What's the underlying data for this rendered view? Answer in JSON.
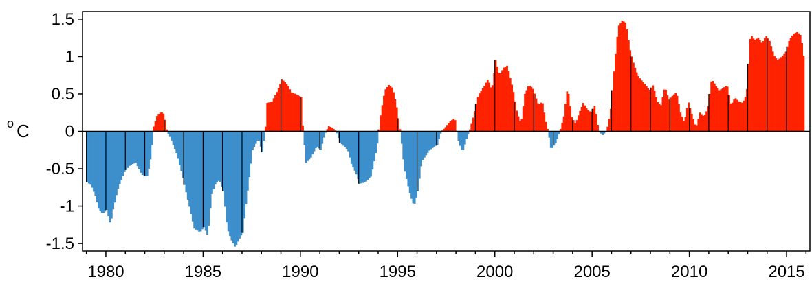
{
  "chart_data": {
    "type": "bar",
    "title": "",
    "xlabel": "",
    "ylabel": "C",
    "ylabel_prefix": "o",
    "xlim": [
      1978.8,
      2016.2
    ],
    "ylim": [
      -1.6,
      1.6
    ],
    "x_ticks": [
      1980,
      1985,
      1990,
      1995,
      2000,
      2005,
      2010,
      2015
    ],
    "x_tick_labels": [
      "1980",
      "1985",
      "1990",
      "1995",
      "2000",
      "2005",
      "2010",
      "2015"
    ],
    "y_ticks": [
      -1.5,
      -1,
      -0.5,
      0,
      0.5,
      1,
      1.5
    ],
    "y_tick_labels": [
      "-1.5",
      "-1",
      "-0.5",
      "0",
      "0.5",
      "1",
      "1.5"
    ],
    "grid": false,
    "legend": "none",
    "colors": {
      "positive": "#ff2200",
      "negative": "#3d8fcc",
      "divider": "#000000"
    },
    "series": [
      {
        "sampling": "monthly (linear interpolation between points)",
        "points": [
          [
            1979.0,
            -0.68
          ],
          [
            1979.2,
            -0.72
          ],
          [
            1979.4,
            -0.85
          ],
          [
            1979.6,
            -1.05
          ],
          [
            1979.8,
            -1.1
          ],
          [
            1980.0,
            -1.05
          ],
          [
            1980.2,
            -1.25
          ],
          [
            1980.3,
            -1.08
          ],
          [
            1980.6,
            -0.75
          ],
          [
            1980.9,
            -0.55
          ],
          [
            1981.2,
            -0.45
          ],
          [
            1981.5,
            -0.42
          ],
          [
            1981.8,
            -0.58
          ],
          [
            1982.1,
            -0.6
          ],
          [
            1982.3,
            -0.3
          ],
          [
            1982.4,
            0.05
          ],
          [
            1982.6,
            0.22
          ],
          [
            1982.8,
            0.26
          ],
          [
            1982.95,
            0.23
          ],
          [
            1983.1,
            0.0
          ],
          [
            1983.3,
            -0.1
          ],
          [
            1983.6,
            -0.3
          ],
          [
            1983.9,
            -0.6
          ],
          [
            1984.2,
            -0.95
          ],
          [
            1984.5,
            -1.3
          ],
          [
            1984.8,
            -1.35
          ],
          [
            1985.0,
            -1.28
          ],
          [
            1985.2,
            -1.4
          ],
          [
            1985.4,
            -0.85
          ],
          [
            1985.6,
            -0.7
          ],
          [
            1985.8,
            -0.65
          ],
          [
            1986.0,
            -0.8
          ],
          [
            1986.2,
            -1.3
          ],
          [
            1986.4,
            -1.45
          ],
          [
            1986.6,
            -1.55
          ],
          [
            1986.8,
            -1.45
          ],
          [
            1987.0,
            -1.35
          ],
          [
            1987.2,
            -0.9
          ],
          [
            1987.5,
            -0.25
          ],
          [
            1987.8,
            -0.1
          ],
          [
            1988.0,
            -0.28
          ],
          [
            1988.15,
            0.0
          ],
          [
            1988.25,
            0.38
          ],
          [
            1988.5,
            0.4
          ],
          [
            1988.8,
            0.55
          ],
          [
            1989.0,
            0.7
          ],
          [
            1989.3,
            0.62
          ],
          [
            1989.5,
            0.52
          ],
          [
            1989.7,
            0.5
          ],
          [
            1990.0,
            0.46
          ],
          [
            1990.1,
            0.0
          ],
          [
            1990.25,
            -0.42
          ],
          [
            1990.5,
            -0.35
          ],
          [
            1990.8,
            -0.2
          ],
          [
            1991.0,
            -0.25
          ],
          [
            1991.2,
            -0.05
          ],
          [
            1991.4,
            0.07
          ],
          [
            1991.6,
            0.05
          ],
          [
            1991.8,
            0.0
          ],
          [
            1992.0,
            -0.15
          ],
          [
            1992.2,
            -0.2
          ],
          [
            1992.4,
            -0.25
          ],
          [
            1992.6,
            -0.45
          ],
          [
            1992.8,
            -0.55
          ],
          [
            1993.0,
            -0.7
          ],
          [
            1993.3,
            -0.68
          ],
          [
            1993.6,
            -0.6
          ],
          [
            1993.9,
            -0.2
          ],
          [
            1994.1,
            0.25
          ],
          [
            1994.3,
            0.55
          ],
          [
            1994.5,
            0.62
          ],
          [
            1994.7,
            0.58
          ],
          [
            1994.9,
            0.35
          ],
          [
            1995.1,
            0.0
          ],
          [
            1995.3,
            -0.5
          ],
          [
            1995.6,
            -0.85
          ],
          [
            1995.8,
            -1.0
          ],
          [
            1996.0,
            -0.8
          ],
          [
            1996.2,
            -0.4
          ],
          [
            1996.6,
            -0.25
          ],
          [
            1997.0,
            -0.18
          ],
          [
            1997.2,
            0.0
          ],
          [
            1997.4,
            0.05
          ],
          [
            1997.6,
            0.12
          ],
          [
            1997.9,
            0.18
          ],
          [
            1998.0,
            0.0
          ],
          [
            1998.1,
            -0.15
          ],
          [
            1998.3,
            -0.28
          ],
          [
            1998.5,
            -0.1
          ],
          [
            1998.7,
            0.05
          ],
          [
            1998.9,
            0.25
          ],
          [
            1999.1,
            0.48
          ],
          [
            1999.4,
            0.6
          ],
          [
            1999.6,
            0.7
          ],
          [
            1999.8,
            0.55
          ],
          [
            2000.0,
            0.95
          ],
          [
            2000.2,
            0.75
          ],
          [
            2000.4,
            0.85
          ],
          [
            2000.6,
            0.88
          ],
          [
            2000.9,
            0.55
          ],
          [
            2001.1,
            0.25
          ],
          [
            2001.3,
            0.1
          ],
          [
            2001.5,
            0.5
          ],
          [
            2001.7,
            0.62
          ],
          [
            2001.9,
            0.58
          ],
          [
            2002.2,
            0.35
          ],
          [
            2002.4,
            0.4
          ],
          [
            2002.6,
            0.1
          ],
          [
            2002.7,
            0.0
          ],
          [
            2002.85,
            -0.25
          ],
          [
            2003.1,
            -0.15
          ],
          [
            2003.3,
            0.0
          ],
          [
            2003.5,
            0.2
          ],
          [
            2003.7,
            0.6
          ],
          [
            2003.9,
            0.2
          ],
          [
            2004.1,
            0.1
          ],
          [
            2004.3,
            0.25
          ],
          [
            2004.5,
            0.38
          ],
          [
            2004.7,
            0.3
          ],
          [
            2004.9,
            0.25
          ],
          [
            2005.1,
            0.35
          ],
          [
            2005.3,
            0.0
          ],
          [
            2005.5,
            -0.05
          ],
          [
            2005.7,
            0.0
          ],
          [
            2005.9,
            0.25
          ],
          [
            2006.1,
            0.85
          ],
          [
            2006.3,
            1.4
          ],
          [
            2006.5,
            1.48
          ],
          [
            2006.7,
            1.45
          ],
          [
            2006.9,
            1.1
          ],
          [
            2007.1,
            0.9
          ],
          [
            2007.3,
            0.75
          ],
          [
            2007.5,
            0.68
          ],
          [
            2007.7,
            0.62
          ],
          [
            2007.9,
            0.55
          ],
          [
            2008.1,
            0.62
          ],
          [
            2008.3,
            0.4
          ],
          [
            2008.5,
            0.35
          ],
          [
            2008.7,
            0.6
          ],
          [
            2008.9,
            0.42
          ],
          [
            2009.1,
            0.48
          ],
          [
            2009.3,
            0.52
          ],
          [
            2009.5,
            0.25
          ],
          [
            2009.7,
            0.12
          ],
          [
            2009.9,
            0.4
          ],
          [
            2010.1,
            0.22
          ],
          [
            2010.3,
            0.05
          ],
          [
            2010.5,
            0.25
          ],
          [
            2010.7,
            0.2
          ],
          [
            2010.9,
            0.3
          ],
          [
            2011.1,
            0.7
          ],
          [
            2011.3,
            0.62
          ],
          [
            2011.5,
            0.55
          ],
          [
            2011.7,
            0.58
          ],
          [
            2011.9,
            0.62
          ],
          [
            2012.1,
            0.35
          ],
          [
            2012.3,
            0.45
          ],
          [
            2012.5,
            0.4
          ],
          [
            2012.7,
            0.38
          ],
          [
            2012.9,
            0.5
          ],
          [
            2013.1,
            1.3
          ],
          [
            2013.3,
            1.22
          ],
          [
            2013.5,
            1.25
          ],
          [
            2013.7,
            1.18
          ],
          [
            2013.9,
            1.28
          ],
          [
            2014.1,
            1.2
          ],
          [
            2014.3,
            1.02
          ],
          [
            2014.5,
            0.95
          ],
          [
            2014.7,
            1.0
          ],
          [
            2014.9,
            1.05
          ],
          [
            2015.1,
            1.22
          ],
          [
            2015.3,
            1.3
          ],
          [
            2015.5,
            1.33
          ],
          [
            2015.7,
            1.28
          ],
          [
            2015.9,
            0.88
          ]
        ]
      }
    ]
  }
}
